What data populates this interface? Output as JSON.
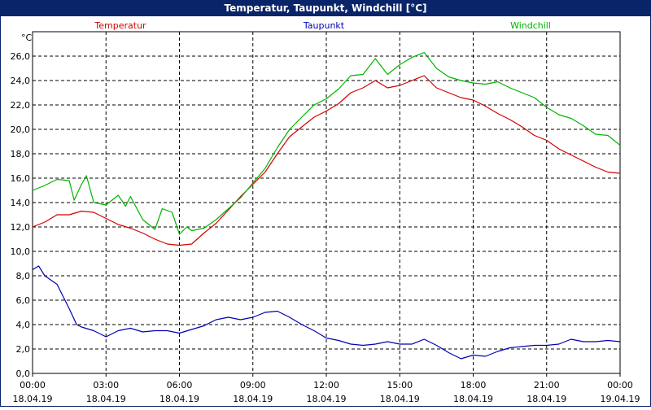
{
  "window": {
    "title": "Temperatur, Taupunkt, Windchill [°C]"
  },
  "colors": {
    "temperatur": "#d40000",
    "taupunkt": "#0000b4",
    "windchill": "#00b400",
    "grid": "#000000",
    "titlebar": "#0a246a"
  },
  "chart_data": {
    "type": "line",
    "title": "Temperatur, Taupunkt, Windchill [°C]",
    "ylabel": "°C",
    "xlabel": "",
    "xlim": [
      0,
      24
    ],
    "ylim": [
      0,
      28
    ],
    "grid": true,
    "legend": "top",
    "yticks": [
      "0,0",
      "2,0",
      "4,0",
      "6,0",
      "8,0",
      "10,0",
      "12,0",
      "14,0",
      "16,0",
      "18,0",
      "20,0",
      "22,0",
      "24,0",
      "26,0"
    ],
    "xticks": [
      {
        "time": "00:00",
        "date": "18.04.19"
      },
      {
        "time": "03:00",
        "date": "18.04.19"
      },
      {
        "time": "06:00",
        "date": "18.04.19"
      },
      {
        "time": "09:00",
        "date": "18.04.19"
      },
      {
        "time": "12:00",
        "date": "18.04.19"
      },
      {
        "time": "15:00",
        "date": "18.04.19"
      },
      {
        "time": "18:00",
        "date": "18.04.19"
      },
      {
        "time": "21:00",
        "date": "18.04.19"
      },
      {
        "time": "00:00",
        "date": "19.04.19"
      }
    ],
    "series": [
      {
        "name": "Temperatur",
        "color": "#d40000",
        "points": [
          [
            0,
            12.0
          ],
          [
            0.5,
            12.4
          ],
          [
            1,
            13.0
          ],
          [
            1.5,
            13.0
          ],
          [
            2,
            13.3
          ],
          [
            2.5,
            13.2
          ],
          [
            3,
            12.7
          ],
          [
            3.5,
            12.2
          ],
          [
            4,
            11.9
          ],
          [
            4.5,
            11.5
          ],
          [
            5,
            11.0
          ],
          [
            5.5,
            10.6
          ],
          [
            6,
            10.5
          ],
          [
            6.5,
            10.6
          ],
          [
            7,
            11.5
          ],
          [
            7.5,
            12.3
          ],
          [
            8,
            13.4
          ],
          [
            8.5,
            14.5
          ],
          [
            9,
            15.5
          ],
          [
            9.5,
            16.5
          ],
          [
            10,
            18.0
          ],
          [
            10.5,
            19.4
          ],
          [
            11,
            20.2
          ],
          [
            11.5,
            21.0
          ],
          [
            12,
            21.5
          ],
          [
            12.5,
            22.1
          ],
          [
            13,
            23.0
          ],
          [
            13.5,
            23.4
          ],
          [
            14,
            24.0
          ],
          [
            14.5,
            23.4
          ],
          [
            15,
            23.6
          ],
          [
            15.5,
            24.0
          ],
          [
            16,
            24.4
          ],
          [
            16.5,
            23.4
          ],
          [
            17,
            23.0
          ],
          [
            17.5,
            22.6
          ],
          [
            18,
            22.4
          ],
          [
            18.5,
            21.9
          ],
          [
            19,
            21.3
          ],
          [
            19.5,
            20.8
          ],
          [
            20,
            20.2
          ],
          [
            20.5,
            19.5
          ],
          [
            21,
            19.1
          ],
          [
            21.5,
            18.4
          ],
          [
            22,
            17.9
          ],
          [
            22.5,
            17.4
          ],
          [
            23,
            16.9
          ],
          [
            23.5,
            16.5
          ],
          [
            24,
            16.4
          ]
        ]
      },
      {
        "name": "Taupunkt",
        "color": "#0000b4",
        "points": [
          [
            0,
            8.5
          ],
          [
            0.25,
            8.8
          ],
          [
            0.5,
            8.0
          ],
          [
            1,
            7.3
          ],
          [
            1.5,
            5.3
          ],
          [
            1.8,
            4.0
          ],
          [
            2,
            3.8
          ],
          [
            2.5,
            3.5
          ],
          [
            3,
            3.0
          ],
          [
            3.5,
            3.5
          ],
          [
            4,
            3.7
          ],
          [
            4.5,
            3.4
          ],
          [
            5,
            3.5
          ],
          [
            5.5,
            3.5
          ],
          [
            6,
            3.3
          ],
          [
            6.5,
            3.6
          ],
          [
            7,
            3.9
          ],
          [
            7.5,
            4.4
          ],
          [
            8,
            4.6
          ],
          [
            8.5,
            4.4
          ],
          [
            9,
            4.6
          ],
          [
            9.5,
            5.0
          ],
          [
            10,
            5.1
          ],
          [
            10.5,
            4.6
          ],
          [
            11,
            4.0
          ],
          [
            11.5,
            3.5
          ],
          [
            12,
            2.9
          ],
          [
            12.5,
            2.7
          ],
          [
            13,
            2.4
          ],
          [
            13.5,
            2.3
          ],
          [
            14,
            2.4
          ],
          [
            14.5,
            2.6
          ],
          [
            15,
            2.4
          ],
          [
            15.5,
            2.4
          ],
          [
            16,
            2.8
          ],
          [
            16.5,
            2.3
          ],
          [
            17,
            1.7
          ],
          [
            17.5,
            1.2
          ],
          [
            18,
            1.5
          ],
          [
            18.5,
            1.4
          ],
          [
            19,
            1.8
          ],
          [
            19.5,
            2.1
          ],
          [
            20,
            2.2
          ],
          [
            20.5,
            2.3
          ],
          [
            21,
            2.3
          ],
          [
            21.5,
            2.4
          ],
          [
            22,
            2.8
          ],
          [
            22.5,
            2.6
          ],
          [
            23,
            2.6
          ],
          [
            23.5,
            2.7
          ],
          [
            24,
            2.6
          ]
        ]
      },
      {
        "name": "Windchill",
        "color": "#00b400",
        "points": [
          [
            0,
            15.0
          ],
          [
            0.5,
            15.4
          ],
          [
            1,
            15.9
          ],
          [
            1.5,
            15.8
          ],
          [
            1.7,
            14.2
          ],
          [
            2,
            15.5
          ],
          [
            2.2,
            16.2
          ],
          [
            2.5,
            14.0
          ],
          [
            3,
            13.8
          ],
          [
            3.5,
            14.6
          ],
          [
            3.8,
            13.7
          ],
          [
            4,
            14.5
          ],
          [
            4.5,
            12.6
          ],
          [
            5,
            11.8
          ],
          [
            5.3,
            13.5
          ],
          [
            5.7,
            13.2
          ],
          [
            6,
            11.4
          ],
          [
            6.3,
            12.0
          ],
          [
            6.5,
            11.7
          ],
          [
            7,
            11.9
          ],
          [
            7.5,
            12.6
          ],
          [
            8,
            13.5
          ],
          [
            8.5,
            14.4
          ],
          [
            9,
            15.6
          ],
          [
            9.5,
            16.8
          ],
          [
            10,
            18.5
          ],
          [
            10.5,
            20.0
          ],
          [
            11,
            21.0
          ],
          [
            11.5,
            22.0
          ],
          [
            12,
            22.5
          ],
          [
            12.5,
            23.3
          ],
          [
            13,
            24.4
          ],
          [
            13.5,
            24.5
          ],
          [
            14,
            25.8
          ],
          [
            14.5,
            24.5
          ],
          [
            15,
            25.3
          ],
          [
            15.5,
            25.9
          ],
          [
            16,
            26.3
          ],
          [
            16.5,
            25.0
          ],
          [
            17,
            24.3
          ],
          [
            17.5,
            24.0
          ],
          [
            18,
            23.8
          ],
          [
            18.5,
            23.7
          ],
          [
            19,
            23.9
          ],
          [
            19.5,
            23.4
          ],
          [
            20,
            23.0
          ],
          [
            20.5,
            22.6
          ],
          [
            21,
            21.8
          ],
          [
            21.5,
            21.2
          ],
          [
            22,
            20.9
          ],
          [
            22.5,
            20.3
          ],
          [
            23,
            19.6
          ],
          [
            23.5,
            19.5
          ],
          [
            24,
            18.7
          ]
        ]
      }
    ]
  }
}
